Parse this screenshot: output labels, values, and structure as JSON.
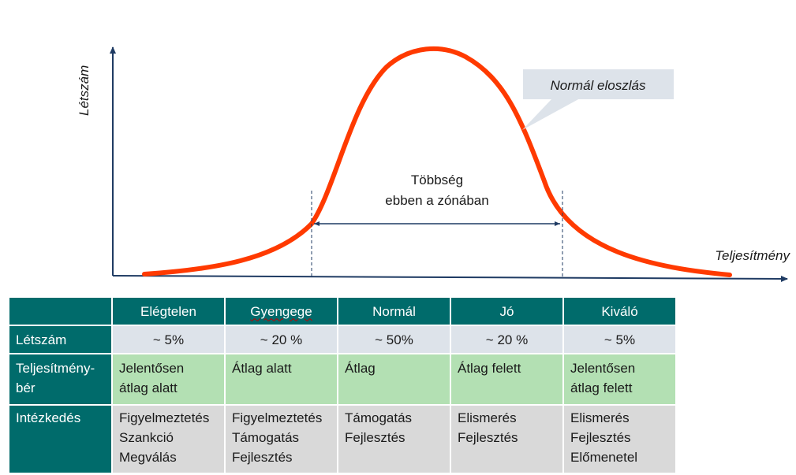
{
  "diagram": {
    "y_axis_label": "Létszám",
    "x_axis_label": "Teljesítmény",
    "zone_label_line1": "Többség",
    "zone_label_line2": "ebben a zónában",
    "callout": "Normál eloszlás",
    "curve_color": "#ff3a00",
    "axis_color": "#1f3b63"
  },
  "table": {
    "columns": [
      "Elégtelen",
      "Gyengege",
      "Normál",
      "Jó",
      "Kiváló"
    ],
    "rows": [
      {
        "label": "Létszám",
        "cells": [
          [
            "~ 5%"
          ],
          [
            "~ 20 %"
          ],
          [
            "~ 50%"
          ],
          [
            "~ 20 %"
          ],
          [
            "~ 5%"
          ]
        ]
      },
      {
        "label": "Teljesítmény-bér",
        "label_lines": [
          "Teljesítmény-",
          "bér"
        ],
        "cells": [
          [
            "Jelentősen",
            "átlag alatt"
          ],
          [
            "Átlag alatt"
          ],
          [
            "Átlag"
          ],
          [
            "Átlag felett"
          ],
          [
            "Jelentősen",
            "átlag felett"
          ]
        ]
      },
      {
        "label": "Intézkedés",
        "cells": [
          [
            "Figyelmeztetés",
            "Szankció",
            "Megválás"
          ],
          [
            "Figyelmeztetés",
            "Támogatás",
            "Fejlesztés"
          ],
          [
            "Támogatás",
            "Fejlesztés"
          ],
          [
            "Elismerés",
            "Fejlesztés"
          ],
          [
            "Elismerés",
            "Fejlesztés",
            "Előmenetel"
          ]
        ]
      }
    ],
    "colors": {
      "header": "#006b6b",
      "row_letszam": "#dde3ea",
      "row_ber": "#b3e0b3",
      "row_intezkedes": "#d9d9d9"
    }
  }
}
